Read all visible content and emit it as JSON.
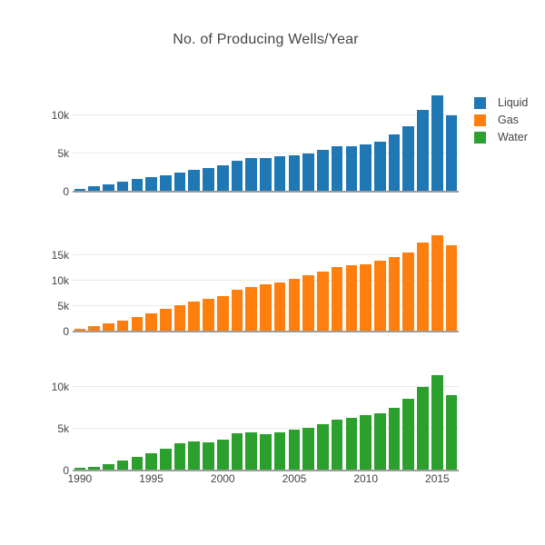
{
  "title": "No. of Producing Wells/Year",
  "colors": {
    "liquid": "#1f77b4",
    "gas": "#ff7f0e",
    "water": "#2ca02c"
  },
  "legend": {
    "items": [
      {
        "label": "Liquid",
        "color": "#1f77b4"
      },
      {
        "label": "Gas",
        "color": "#ff7f0e"
      },
      {
        "label": "Water",
        "color": "#2ca02c"
      }
    ]
  },
  "xaxis": {
    "tick_labels": [
      "1990",
      "1995",
      "2000",
      "2005",
      "2010",
      "2015"
    ],
    "tick_years": [
      1990,
      1995,
      2000,
      2005,
      2010,
      2015
    ],
    "first_year": 1990,
    "last_year": 2016
  },
  "chart_data": [
    {
      "type": "bar",
      "name": "Liquid",
      "color": "#1f77b4",
      "x": [
        1990,
        1991,
        1992,
        1993,
        1994,
        1995,
        1996,
        1997,
        1998,
        1999,
        2000,
        2001,
        2002,
        2003,
        2004,
        2005,
        2006,
        2007,
        2008,
        2009,
        2010,
        2011,
        2012,
        2013,
        2014,
        2015,
        2016
      ],
      "values": [
        300,
        620,
        870,
        1290,
        1560,
        1830,
        2120,
        2490,
        2830,
        3060,
        3420,
        4000,
        4380,
        4380,
        4600,
        4760,
        4950,
        5470,
        5860,
        5900,
        6200,
        6550,
        7400,
        8550,
        10620,
        12600,
        9960
      ],
      "ylim": [
        0,
        13350
      ],
      "yticks": [
        {
          "v": 0,
          "label": "0"
        },
        {
          "v": 5000,
          "label": "5k"
        },
        {
          "v": 10000,
          "label": "10k"
        }
      ],
      "grid": true,
      "legend_position": "top-right"
    },
    {
      "type": "bar",
      "name": "Gas",
      "color": "#ff7f0e",
      "x": [
        1990,
        1991,
        1992,
        1993,
        1994,
        1995,
        1996,
        1997,
        1998,
        1999,
        2000,
        2001,
        2002,
        2003,
        2004,
        2005,
        2006,
        2007,
        2008,
        2009,
        2010,
        2011,
        2012,
        2013,
        2014,
        2015,
        2016
      ],
      "values": [
        650,
        1060,
        1650,
        2130,
        2890,
        3650,
        4490,
        5250,
        5960,
        6400,
        6950,
        8200,
        8800,
        9350,
        9650,
        10400,
        11100,
        11700,
        12650,
        12950,
        13250,
        13800,
        14500,
        15450,
        17400,
        18800,
        16850
      ],
      "ylim": [
        0,
        19900
      ],
      "yticks": [
        {
          "v": 0,
          "label": "0"
        },
        {
          "v": 5000,
          "label": "5k"
        },
        {
          "v": 10000,
          "label": "10k"
        },
        {
          "v": 15000,
          "label": "15k"
        }
      ],
      "grid": true
    },
    {
      "type": "bar",
      "name": "Water",
      "color": "#2ca02c",
      "x": [
        1990,
        1991,
        1992,
        1993,
        1994,
        1995,
        1996,
        1997,
        1998,
        1999,
        2000,
        2001,
        2002,
        2003,
        2004,
        2005,
        2006,
        2007,
        2008,
        2009,
        2010,
        2011,
        2012,
        2013,
        2014,
        2015,
        2016
      ],
      "values": [
        250,
        440,
        690,
        1180,
        1590,
        2010,
        2600,
        3190,
        3450,
        3340,
        3700,
        4450,
        4520,
        4360,
        4570,
        4870,
        5090,
        5600,
        6120,
        6270,
        6640,
        6860,
        7520,
        8600,
        10100,
        11500,
        9080
      ],
      "ylim": [
        0,
        12300
      ],
      "yticks": [
        {
          "v": 0,
          "label": "0"
        },
        {
          "v": 5000,
          "label": "5k"
        },
        {
          "v": 10000,
          "label": "10k"
        }
      ],
      "grid": true
    }
  ]
}
